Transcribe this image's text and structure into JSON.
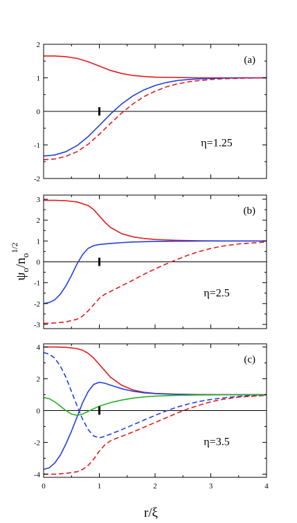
{
  "figure": {
    "xlabel": "r/ξ",
    "ylabel_main": "ψ",
    "ylabel_sub1": "o",
    "ylabel_sep": "/n",
    "ylabel_sub2": "o",
    "ylabel_sup": "1/2"
  },
  "chart_data": [
    {
      "type": "line",
      "panel_label": "(a)",
      "annotation": "η=1.25",
      "xlim": [
        0,
        4
      ],
      "ylim": [
        -2,
        2
      ],
      "x_ticks": [
        0,
        1,
        2,
        3,
        4
      ],
      "y_ticks": [
        -2,
        -1,
        0,
        1,
        2
      ],
      "y_tick_labels": [
        "-2",
        "-1",
        "0",
        "1",
        "2"
      ],
      "zero_line": true,
      "marker_x": 1,
      "series": [
        {
          "color": "#e31a1c",
          "dash": "solid",
          "x": [
            0,
            0.2,
            0.4,
            0.6,
            0.8,
            1.0,
            1.2,
            1.4,
            1.6,
            1.8,
            2.0,
            2.4,
            2.8,
            3.2,
            3.6,
            4.0
          ],
          "y": [
            1.65,
            1.65,
            1.63,
            1.58,
            1.48,
            1.35,
            1.22,
            1.13,
            1.07,
            1.04,
            1.02,
            1.01,
            1.0,
            1.0,
            1.0,
            1.0
          ]
        },
        {
          "color": "#1f3fe0",
          "dash": "solid",
          "x": [
            0,
            0.2,
            0.4,
            0.6,
            0.8,
            1.0,
            1.2,
            1.4,
            1.6,
            1.8,
            2.0,
            2.2,
            2.4,
            2.6,
            2.8,
            3.0,
            3.2,
            3.6,
            4.0
          ],
          "y": [
            -1.33,
            -1.3,
            -1.2,
            -1.02,
            -0.75,
            -0.42,
            -0.08,
            0.22,
            0.46,
            0.64,
            0.77,
            0.86,
            0.92,
            0.95,
            0.97,
            0.98,
            0.99,
            1.0,
            1.0
          ]
        },
        {
          "color": "#e31a1c",
          "dash": "dashed",
          "x": [
            0,
            0.2,
            0.4,
            0.6,
            0.8,
            1.0,
            1.2,
            1.4,
            1.6,
            1.8,
            2.0,
            2.2,
            2.4,
            2.6,
            2.8,
            3.0,
            3.2,
            3.6,
            4.0
          ],
          "y": [
            -1.44,
            -1.42,
            -1.34,
            -1.2,
            -0.98,
            -0.68,
            -0.36,
            -0.05,
            0.22,
            0.44,
            0.6,
            0.73,
            0.82,
            0.88,
            0.92,
            0.95,
            0.97,
            0.99,
            1.0
          ]
        }
      ]
    },
    {
      "type": "line",
      "panel_label": "(b)",
      "annotation": "η=2.5",
      "xlim": [
        0,
        4
      ],
      "ylim": [
        -3.2,
        3.2
      ],
      "x_ticks": [
        0,
        1,
        2,
        3,
        4
      ],
      "y_ticks": [
        -3,
        -2,
        -1,
        0,
        1,
        2,
        3
      ],
      "y_tick_labels": [
        "-3",
        "-2",
        "-1",
        "0",
        "1",
        "2",
        "3"
      ],
      "zero_line": true,
      "marker_x": 1,
      "series": [
        {
          "color": "#e31a1c",
          "dash": "solid",
          "x": [
            0,
            0.2,
            0.4,
            0.6,
            0.8,
            0.9,
            1.0,
            1.1,
            1.2,
            1.4,
            1.6,
            1.8,
            2.0,
            2.4,
            2.8,
            3.2,
            3.6,
            4.0
          ],
          "y": [
            2.95,
            2.95,
            2.93,
            2.87,
            2.7,
            2.5,
            2.2,
            1.9,
            1.65,
            1.35,
            1.2,
            1.12,
            1.07,
            1.03,
            1.01,
            1.0,
            1.0,
            1.0
          ]
        },
        {
          "color": "#1f3fe0",
          "dash": "solid",
          "x": [
            0,
            0.1,
            0.2,
            0.3,
            0.4,
            0.5,
            0.6,
            0.7,
            0.8,
            0.9,
            1.0,
            1.2,
            1.4,
            1.6,
            2.0,
            2.5,
            3.0,
            4.0
          ],
          "y": [
            -2.0,
            -1.95,
            -1.82,
            -1.55,
            -1.15,
            -0.65,
            -0.1,
            0.35,
            0.65,
            0.78,
            0.83,
            0.88,
            0.92,
            0.95,
            0.98,
            0.99,
            1.0,
            1.0
          ]
        },
        {
          "color": "#e31a1c",
          "dash": "dashed",
          "x": [
            0,
            0.2,
            0.4,
            0.6,
            0.7,
            0.8,
            0.9,
            1.0,
            1.1,
            1.2,
            1.4,
            1.6,
            1.8,
            2.0,
            2.2,
            2.4,
            2.6,
            2.8,
            3.0,
            3.2,
            3.5,
            4.0
          ],
          "y": [
            -2.95,
            -2.93,
            -2.88,
            -2.75,
            -2.6,
            -2.35,
            -2.05,
            -1.75,
            -1.55,
            -1.42,
            -1.15,
            -0.88,
            -0.6,
            -0.34,
            -0.1,
            0.12,
            0.33,
            0.5,
            0.64,
            0.75,
            0.86,
            0.95
          ]
        }
      ]
    },
    {
      "type": "line",
      "panel_label": "(c)",
      "annotation": "η=3.5",
      "xlim": [
        0,
        4
      ],
      "ylim": [
        -4.2,
        4.2
      ],
      "x_ticks": [
        0,
        1,
        2,
        3,
        4
      ],
      "y_ticks": [
        -4,
        -2,
        0,
        2,
        4
      ],
      "y_tick_labels": [
        "-4",
        "-2",
        "0",
        "2",
        "4"
      ],
      "zero_line": true,
      "marker_x": 1,
      "series": [
        {
          "color": "#e31a1c",
          "dash": "solid",
          "x": [
            0,
            0.2,
            0.4,
            0.6,
            0.7,
            0.8,
            0.9,
            1.0,
            1.1,
            1.2,
            1.4,
            1.6,
            1.8,
            2.0,
            2.4,
            2.8,
            3.2,
            4.0
          ],
          "y": [
            4.0,
            4.0,
            3.98,
            3.9,
            3.8,
            3.6,
            3.3,
            2.9,
            2.5,
            2.1,
            1.6,
            1.3,
            1.15,
            1.08,
            1.03,
            1.01,
            1.0,
            1.0
          ]
        },
        {
          "color": "#1f3fe0",
          "dash": "solid",
          "x": [
            0,
            0.1,
            0.2,
            0.3,
            0.4,
            0.5,
            0.6,
            0.7,
            0.8,
            0.9,
            1.0,
            1.1,
            1.2,
            1.4,
            1.6,
            1.8,
            2.0,
            2.4,
            2.8,
            4.0
          ],
          "y": [
            -3.7,
            -3.6,
            -3.3,
            -2.8,
            -2.1,
            -1.3,
            -0.4,
            0.5,
            1.2,
            1.65,
            1.78,
            1.72,
            1.6,
            1.38,
            1.22,
            1.12,
            1.07,
            1.02,
            1.0,
            1.0
          ]
        },
        {
          "color": "#1f3fe0",
          "dash": "dashed",
          "x": [
            0,
            0.1,
            0.2,
            0.3,
            0.4,
            0.5,
            0.6,
            0.7,
            0.8,
            0.9,
            1.0,
            1.1,
            1.2,
            1.4,
            1.6,
            1.8,
            2.0,
            2.2,
            2.4,
            2.6,
            2.8,
            3.0,
            3.3,
            3.6,
            4.0
          ],
          "y": [
            3.65,
            3.55,
            3.3,
            2.8,
            2.1,
            1.2,
            0.3,
            -0.55,
            -1.2,
            -1.6,
            -1.72,
            -1.62,
            -1.48,
            -1.2,
            -0.9,
            -0.6,
            -0.3,
            -0.02,
            0.22,
            0.42,
            0.58,
            0.7,
            0.83,
            0.92,
            0.98
          ]
        },
        {
          "color": "#e31a1c",
          "dash": "dashed",
          "x": [
            0,
            0.2,
            0.4,
            0.6,
            0.7,
            0.8,
            0.9,
            1.0,
            1.1,
            1.2,
            1.3,
            1.4,
            1.6,
            1.8,
            2.0,
            2.2,
            2.4,
            2.6,
            2.8,
            3.0,
            3.2,
            3.5,
            4.0
          ],
          "y": [
            -4.0,
            -4.0,
            -3.95,
            -3.85,
            -3.7,
            -3.45,
            -3.05,
            -2.55,
            -2.15,
            -1.9,
            -1.75,
            -1.62,
            -1.35,
            -1.05,
            -0.75,
            -0.45,
            -0.15,
            0.12,
            0.35,
            0.55,
            0.7,
            0.85,
            0.96
          ]
        },
        {
          "color": "#22b022",
          "dash": "solid",
          "x": [
            0,
            0.1,
            0.2,
            0.3,
            0.4,
            0.5,
            0.6,
            0.7,
            0.8,
            0.9,
            1.0,
            1.2,
            1.4,
            1.6,
            1.8,
            2.0,
            2.4,
            2.8,
            3.2,
            4.0
          ],
          "y": [
            0.82,
            0.75,
            0.55,
            0.28,
            0.0,
            -0.22,
            -0.3,
            -0.22,
            -0.05,
            0.12,
            0.28,
            0.5,
            0.66,
            0.78,
            0.86,
            0.91,
            0.96,
            0.98,
            0.99,
            1.0
          ]
        }
      ]
    }
  ]
}
